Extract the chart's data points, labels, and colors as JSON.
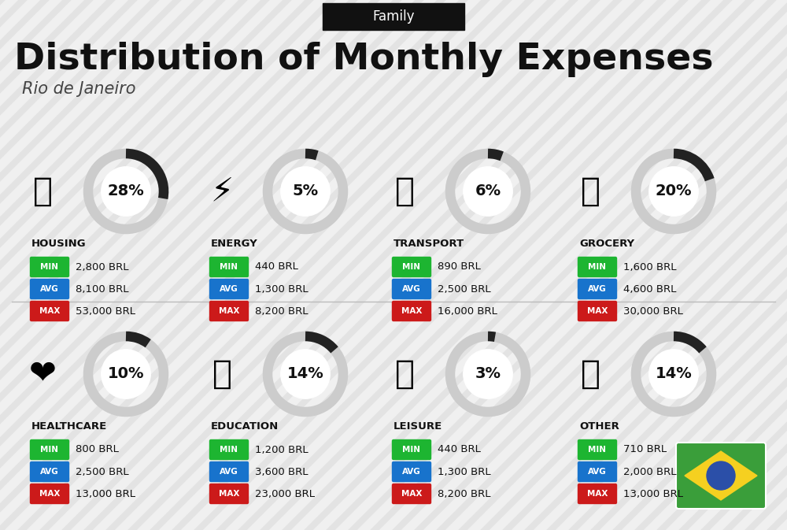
{
  "title": "Distribution of Monthly Expenses",
  "subtitle": "Family",
  "location": "Rio de Janeiro",
  "bg_color": "#f0f0f0",
  "categories": [
    {
      "name": "HOUSING",
      "percent": 28,
      "min": "2,800 BRL",
      "avg": "8,100 BRL",
      "max": "53,000 BRL",
      "icon": "🏙",
      "row": 0,
      "col": 0
    },
    {
      "name": "ENERGY",
      "percent": 5,
      "min": "440 BRL",
      "avg": "1,300 BRL",
      "max": "8,200 BRL",
      "icon": "⚡",
      "row": 0,
      "col": 1
    },
    {
      "name": "TRANSPORT",
      "percent": 6,
      "min": "890 BRL",
      "avg": "2,500 BRL",
      "max": "16,000 BRL",
      "icon": "🚌",
      "row": 0,
      "col": 2
    },
    {
      "name": "GROCERY",
      "percent": 20,
      "min": "1,600 BRL",
      "avg": "4,600 BRL",
      "max": "30,000 BRL",
      "icon": "🛒",
      "row": 0,
      "col": 3
    },
    {
      "name": "HEALTHCARE",
      "percent": 10,
      "min": "800 BRL",
      "avg": "2,500 BRL",
      "max": "13,000 BRL",
      "icon": "❤️",
      "row": 1,
      "col": 0
    },
    {
      "name": "EDUCATION",
      "percent": 14,
      "min": "1,200 BRL",
      "avg": "3,600 BRL",
      "max": "23,000 BRL",
      "icon": "🎓",
      "row": 1,
      "col": 1
    },
    {
      "name": "LEISURE",
      "percent": 3,
      "min": "440 BRL",
      "avg": "1,300 BRL",
      "max": "8,200 BRL",
      "icon": "🛍️",
      "row": 1,
      "col": 2
    },
    {
      "name": "OTHER",
      "percent": 14,
      "min": "710 BRL",
      "avg": "2,000 BRL",
      "max": "13,000 BRL",
      "icon": "💰",
      "row": 1,
      "col": 3
    }
  ],
  "min_color": "#1db531",
  "avg_color": "#1873cc",
  "max_color": "#cc1a1a",
  "arc_dark": "#222222",
  "arc_light": "#cccccc",
  "text_color": "#111111",
  "tag_bg": "#111111",
  "tag_text": "#ffffff",
  "stripe_color": "#d8d8d8",
  "flag_green": "#3a9e3a",
  "flag_yellow": "#f5d020",
  "flag_blue": "#2b4fa8"
}
